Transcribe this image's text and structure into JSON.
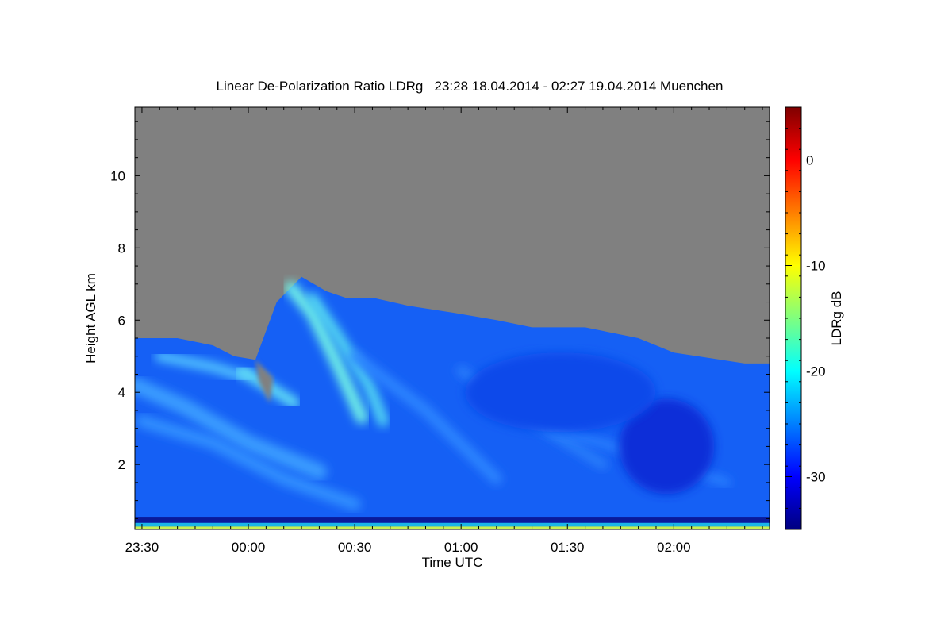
{
  "chart_data": {
    "type": "heatmap",
    "title": "Linear De-Polarization Ratio LDRg   23:28 18.04.2014 - 02:27 19.04.2014 Muenchen",
    "xlabel": "Time UTC",
    "ylabel": "Height AGL km",
    "colorbar_label": "LDRg dB",
    "x_tick_labels": [
      "23:30",
      "00:00",
      "00:30",
      "01:00",
      "01:30",
      "02:00"
    ],
    "x_tick_minutes": [
      0,
      30,
      60,
      90,
      120,
      150
    ],
    "xlim_minutes": [
      -2,
      177
    ],
    "y_ticks": [
      2,
      4,
      6,
      8,
      10
    ],
    "ylim": [
      0.2,
      11.9
    ],
    "colorbar_ticks": [
      0,
      -10,
      -20,
      -30
    ],
    "colorbar_range": [
      -35,
      5
    ],
    "no_signal_color": "#808080",
    "colormap": [
      "#00007f",
      "#0000ff",
      "#007fff",
      "#00ffff",
      "#7fff7f",
      "#ffff00",
      "#ff7f00",
      "#ff0000",
      "#7f0000"
    ],
    "cloud_top_km": [
      {
        "t": -2,
        "h": 5.5
      },
      {
        "t": 10,
        "h": 5.5
      },
      {
        "t": 20,
        "h": 5.3
      },
      {
        "t": 26,
        "h": 5.0
      },
      {
        "t": 32,
        "h": 4.9
      },
      {
        "t": 38,
        "h": 6.5
      },
      {
        "t": 45,
        "h": 7.2
      },
      {
        "t": 52,
        "h": 6.8
      },
      {
        "t": 58,
        "h": 6.6
      },
      {
        "t": 66,
        "h": 6.6
      },
      {
        "t": 75,
        "h": 6.4
      },
      {
        "t": 88,
        "h": 6.2
      },
      {
        "t": 100,
        "h": 6.0
      },
      {
        "t": 110,
        "h": 5.8
      },
      {
        "t": 125,
        "h": 5.8
      },
      {
        "t": 140,
        "h": 5.5
      },
      {
        "t": 150,
        "h": 5.1
      },
      {
        "t": 160,
        "h": 4.95
      },
      {
        "t": 170,
        "h": 4.8
      },
      {
        "t": 177,
        "h": 4.8
      }
    ]
  }
}
